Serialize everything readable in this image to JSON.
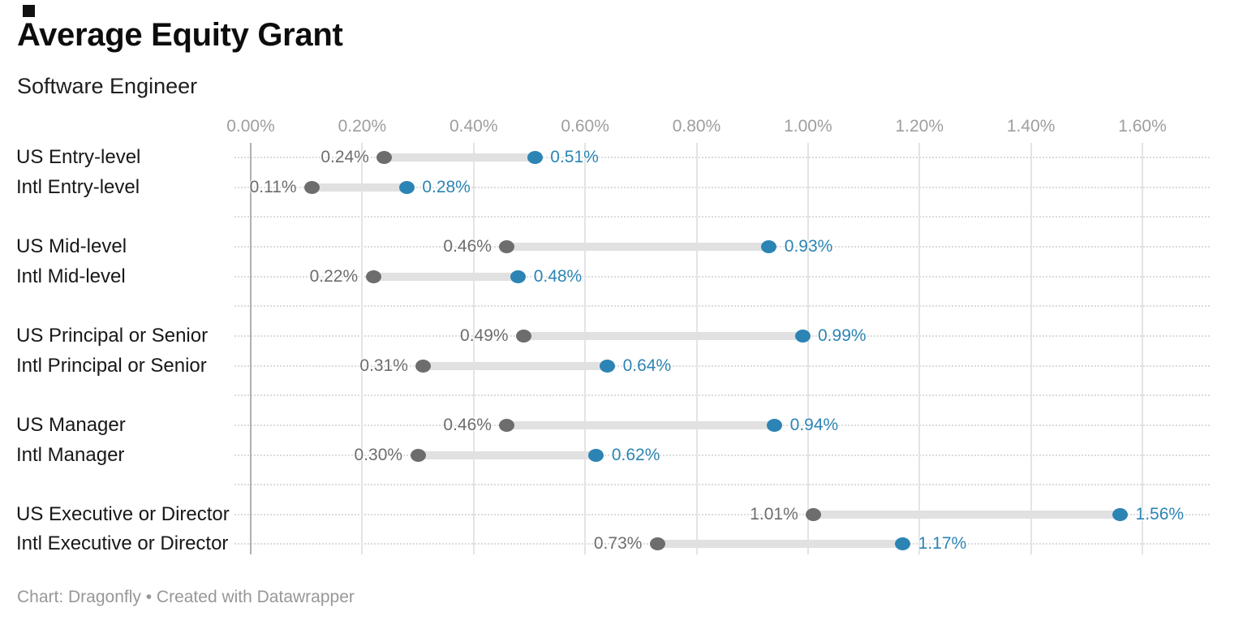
{
  "header": {
    "title": "Average Equity Grant",
    "subtitle": "Software Engineer"
  },
  "footer": {
    "text": "Chart: Dragonfly • Created with Datawrapper"
  },
  "colors": {
    "end_blue": "#2c84b4",
    "start_gray": "#6d6d6d",
    "bar_gray": "#e1e1e1",
    "gridline": "#e4e4e4",
    "zero_line": "#b1b1b1",
    "axis_text": "#9e9e9e",
    "category_text": "#181818"
  },
  "chart_data": {
    "type": "dumbbell",
    "title": "Average Equity Grant",
    "subtitle": "Software Engineer",
    "xlabel": "",
    "ylabel": "",
    "xlim": [
      0,
      1.6
    ],
    "grid": "vertical lines + dotted row guides",
    "legend": "none",
    "x_axis": {
      "min": 0,
      "max": 1.6,
      "tick_values": [
        0,
        0.2,
        0.4,
        0.6,
        0.8,
        1.0,
        1.2,
        1.4,
        1.6
      ],
      "tick_labels": [
        "0.00%",
        "0.20%",
        "0.40%",
        "0.60%",
        "0.80%",
        "1.00%",
        "1.20%",
        "1.40%",
        "1.60%"
      ]
    },
    "groups": [
      {
        "rows": [
          {
            "label": "US Entry-level",
            "start": 0.24,
            "end": 0.51,
            "start_label": "0.24%",
            "end_label": "0.51%"
          },
          {
            "label": "Intl Entry-level",
            "start": 0.11,
            "end": 0.28,
            "start_label": "0.11%",
            "end_label": "0.28%"
          }
        ]
      },
      {
        "rows": [
          {
            "label": "US Mid-level",
            "start": 0.46,
            "end": 0.93,
            "start_label": "0.46%",
            "end_label": "0.93%"
          },
          {
            "label": "Intl Mid-level",
            "start": 0.22,
            "end": 0.48,
            "start_label": "0.22%",
            "end_label": "0.48%"
          }
        ]
      },
      {
        "rows": [
          {
            "label": "US Principal or Senior",
            "start": 0.49,
            "end": 0.99,
            "start_label": "0.49%",
            "end_label": "0.99%"
          },
          {
            "label": "Intl Principal or Senior",
            "start": 0.31,
            "end": 0.64,
            "start_label": "0.31%",
            "end_label": "0.64%"
          }
        ]
      },
      {
        "rows": [
          {
            "label": "US Manager",
            "start": 0.46,
            "end": 0.94,
            "start_label": "0.46%",
            "end_label": "0.94%"
          },
          {
            "label": "Intl Manager",
            "start": 0.3,
            "end": 0.62,
            "start_label": "0.30%",
            "end_label": "0.62%"
          }
        ]
      },
      {
        "rows": [
          {
            "label": "US Executive or Director",
            "start": 1.01,
            "end": 1.56,
            "start_label": "1.01%",
            "end_label": "1.56%"
          },
          {
            "label": "Intl Executive or Director",
            "start": 0.73,
            "end": 1.17,
            "start_label": "0.73%",
            "end_label": "1.17%"
          }
        ]
      }
    ]
  }
}
